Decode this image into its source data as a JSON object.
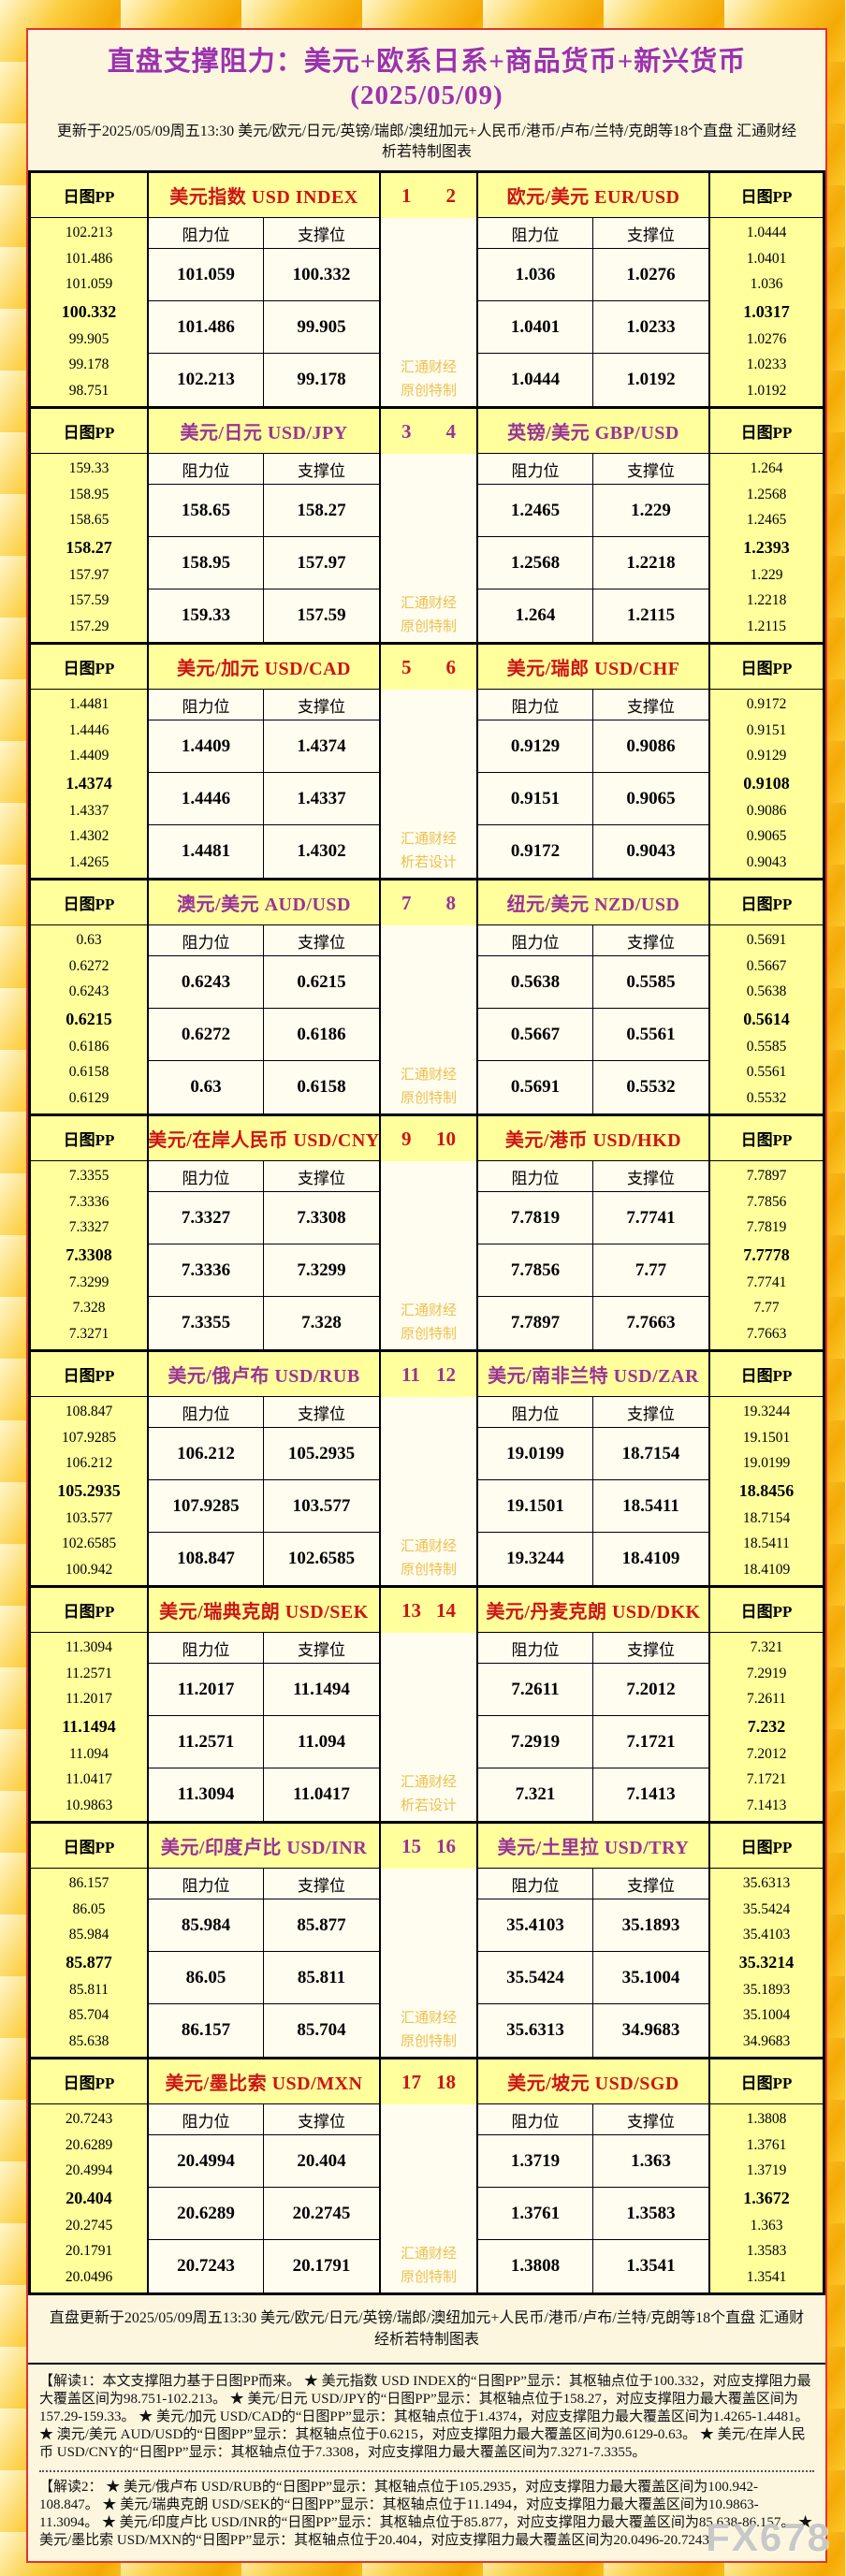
{
  "page": {
    "title": "直盘支撑阻力：美元+欧系日系+商品货币+新兴货币(2025/05/09)",
    "subtitle": "更新于2025/05/09周五13:30 美元/欧元/日元/英镑/瑞郎/澳纽加元+人民币/港币/卢布/兰特/克朗等18个直盘 汇通财经析若特制图表",
    "pp_header": "日图PP",
    "res_label": "阻力位",
    "sup_label": "支撑位",
    "summary": "直盘更新于2025/05/09周五13:30 美元/欧元/日元/英镑/瑞郎/澳纽加元+人民币/港币/卢布/兰特/克朗等18个直盘 汇通财经析若特制图表",
    "note1": "【解读1：本文支撑阻力基于日图PP而来。 ★ 美元指数 USD INDEX的“日图PP”显示：其枢轴点位于100.332，对应支撑阻力最大覆盖区间为98.751-102.213。 ★ 美元/日元 USD/JPY的“日图PP”显示：其枢轴点位于158.27，对应支撑阻力最大覆盖区间为157.29-159.33。 ★ 美元/加元 USD/CAD的“日图PP”显示：其枢轴点位于1.4374，对应支撑阻力最大覆盖区间为1.4265-1.4481。 ★ 澳元/美元 AUD/USD的“日图PP”显示：其枢轴点位于0.6215，对应支撑阻力最大覆盖区间为0.6129-0.63。 ★ 美元/在岸人民币 USD/CNY的“日图PP”显示：其枢轴点位于7.3308，对应支撑阻力最大覆盖区间为7.3271-7.3355。",
    "note2": "【解读2： ★ 美元/俄卢布 USD/RUB的“日图PP”显示：其枢轴点位于105.2935，对应支撑阻力最大覆盖区间为100.942-108.847。 ★ 美元/瑞典克朗 USD/SEK的“日图PP”显示：其枢轴点位于11.1494，对应支撑阻力最大覆盖区间为10.9863-11.3094。 ★ 美元/印度卢比 USD/INR的“日图PP”显示：其枢轴点位于85.877，对应支撑阻力最大覆盖区间为85.638-86.157。 ★ 美元/墨比索 USD/MXN的“日图PP”显示：其枢轴点位于20.404，对应支撑阻力最大覆盖区间为20.0496-20.7243。",
    "brand_mark": "FX678"
  },
  "colors": {
    "red_accent": "#CC1515",
    "purple_accent": "#993399",
    "title_purple": "#9B32B0",
    "header_bg": "#FFFF9C",
    "cell_bg": "#FFFDF0",
    "watermark_gold": "#EDC04E"
  },
  "chart_data": {
    "type": "table",
    "title": "直盘支撑阻力：美元+欧系日系+商品货币+新兴货币(2025/05/09)",
    "columns_per_pair": [
      "阻力位",
      "支撑位"
    ],
    "blocks": [
      {
        "num_left": "1",
        "num_right": "2",
        "accent": "red",
        "watermark": [
          "汇通财经",
          "原创特制"
        ],
        "left": {
          "title": "美元指数 USD INDEX",
          "pp": [
            "102.213",
            "101.486",
            "101.059",
            "100.332",
            "99.905",
            "99.178",
            "98.751"
          ],
          "rows": [
            [
              "101.059",
              "100.332"
            ],
            [
              "101.486",
              "99.905"
            ],
            [
              "102.213",
              "99.178"
            ]
          ]
        },
        "right": {
          "title": "欧元/美元 EUR/USD",
          "pp": [
            "1.0444",
            "1.0401",
            "1.036",
            "1.0317",
            "1.0276",
            "1.0233",
            "1.0192"
          ],
          "rows": [
            [
              "1.036",
              "1.0276"
            ],
            [
              "1.0401",
              "1.0233"
            ],
            [
              "1.0444",
              "1.0192"
            ]
          ]
        }
      },
      {
        "num_left": "3",
        "num_right": "4",
        "accent": "purple",
        "watermark": [
          "汇通财经",
          "原创特制"
        ],
        "left": {
          "title": "美元/日元 USD/JPY",
          "pp": [
            "159.33",
            "158.95",
            "158.65",
            "158.27",
            "157.97",
            "157.59",
            "157.29"
          ],
          "rows": [
            [
              "158.65",
              "158.27"
            ],
            [
              "158.95",
              "157.97"
            ],
            [
              "159.33",
              "157.59"
            ]
          ]
        },
        "right": {
          "title": "英镑/美元 GBP/USD",
          "pp": [
            "1.264",
            "1.2568",
            "1.2465",
            "1.2393",
            "1.229",
            "1.2218",
            "1.2115"
          ],
          "rows": [
            [
              "1.2465",
              "1.229"
            ],
            [
              "1.2568",
              "1.2218"
            ],
            [
              "1.264",
              "1.2115"
            ]
          ]
        }
      },
      {
        "num_left": "5",
        "num_right": "6",
        "accent": "red",
        "watermark": [
          "汇通财经",
          "析若设计"
        ],
        "left": {
          "title": "美元/加元 USD/CAD",
          "pp": [
            "1.4481",
            "1.4446",
            "1.4409",
            "1.4374",
            "1.4337",
            "1.4302",
            "1.4265"
          ],
          "rows": [
            [
              "1.4409",
              "1.4374"
            ],
            [
              "1.4446",
              "1.4337"
            ],
            [
              "1.4481",
              "1.4302"
            ]
          ]
        },
        "right": {
          "title": "美元/瑞郎 USD/CHF",
          "pp": [
            "0.9172",
            "0.9151",
            "0.9129",
            "0.9108",
            "0.9086",
            "0.9065",
            "0.9043"
          ],
          "rows": [
            [
              "0.9129",
              "0.9086"
            ],
            [
              "0.9151",
              "0.9065"
            ],
            [
              "0.9172",
              "0.9043"
            ]
          ]
        }
      },
      {
        "num_left": "7",
        "num_right": "8",
        "accent": "purple",
        "watermark": [
          "汇通财经",
          "原创特制"
        ],
        "left": {
          "title": "澳元/美元 AUD/USD",
          "pp": [
            "0.63",
            "0.6272",
            "0.6243",
            "0.6215",
            "0.6186",
            "0.6158",
            "0.6129"
          ],
          "rows": [
            [
              "0.6243",
              "0.6215"
            ],
            [
              "0.6272",
              "0.6186"
            ],
            [
              "0.63",
              "0.6158"
            ]
          ]
        },
        "right": {
          "title": "纽元/美元 NZD/USD",
          "pp": [
            "0.5691",
            "0.5667",
            "0.5638",
            "0.5614",
            "0.5585",
            "0.5561",
            "0.5532"
          ],
          "rows": [
            [
              "0.5638",
              "0.5585"
            ],
            [
              "0.5667",
              "0.5561"
            ],
            [
              "0.5691",
              "0.5532"
            ]
          ]
        }
      },
      {
        "num_left": "9",
        "num_right": "10",
        "accent": "red",
        "watermark": [
          "汇通财经",
          "原创特制"
        ],
        "left": {
          "title": "美元/在岸人民币 USD/CNY",
          "pp": [
            "7.3355",
            "7.3336",
            "7.3327",
            "7.3308",
            "7.3299",
            "7.328",
            "7.3271"
          ],
          "rows": [
            [
              "7.3327",
              "7.3308"
            ],
            [
              "7.3336",
              "7.3299"
            ],
            [
              "7.3355",
              "7.328"
            ]
          ]
        },
        "right": {
          "title": "美元/港币 USD/HKD",
          "pp": [
            "7.7897",
            "7.7856",
            "7.7819",
            "7.7778",
            "7.7741",
            "7.77",
            "7.7663"
          ],
          "rows": [
            [
              "7.7819",
              "7.7741"
            ],
            [
              "7.7856",
              "7.77"
            ],
            [
              "7.7897",
              "7.7663"
            ]
          ]
        }
      },
      {
        "num_left": "11",
        "num_right": "12",
        "accent": "purple",
        "watermark": [
          "汇通财经",
          "原创特制"
        ],
        "left": {
          "title": "美元/俄卢布 USD/RUB",
          "pp": [
            "108.847",
            "107.9285",
            "106.212",
            "105.2935",
            "103.577",
            "102.6585",
            "100.942"
          ],
          "rows": [
            [
              "106.212",
              "105.2935"
            ],
            [
              "107.9285",
              "103.577"
            ],
            [
              "108.847",
              "102.6585"
            ]
          ]
        },
        "right": {
          "title": "美元/南非兰特 USD/ZAR",
          "pp": [
            "19.3244",
            "19.1501",
            "19.0199",
            "18.8456",
            "18.7154",
            "18.5411",
            "18.4109"
          ],
          "rows": [
            [
              "19.0199",
              "18.7154"
            ],
            [
              "19.1501",
              "18.5411"
            ],
            [
              "19.3244",
              "18.4109"
            ]
          ]
        }
      },
      {
        "num_left": "13",
        "num_right": "14",
        "accent": "red",
        "watermark": [
          "汇通财经",
          "析若设计"
        ],
        "left": {
          "title": "美元/瑞典克朗 USD/SEK",
          "pp": [
            "11.3094",
            "11.2571",
            "11.2017",
            "11.1494",
            "11.094",
            "11.0417",
            "10.9863"
          ],
          "rows": [
            [
              "11.2017",
              "11.1494"
            ],
            [
              "11.2571",
              "11.094"
            ],
            [
              "11.3094",
              "11.0417"
            ]
          ]
        },
        "right": {
          "title": "美元/丹麦克朗 USD/DKK",
          "pp": [
            "7.321",
            "7.2919",
            "7.2611",
            "7.232",
            "7.2012",
            "7.1721",
            "7.1413"
          ],
          "rows": [
            [
              "7.2611",
              "7.2012"
            ],
            [
              "7.2919",
              "7.1721"
            ],
            [
              "7.321",
              "7.1413"
            ]
          ]
        }
      },
      {
        "num_left": "15",
        "num_right": "16",
        "accent": "purple",
        "watermark": [
          "汇通财经",
          "原创特制"
        ],
        "left": {
          "title": "美元/印度卢比 USD/INR",
          "pp": [
            "86.157",
            "86.05",
            "85.984",
            "85.877",
            "85.811",
            "85.704",
            "85.638"
          ],
          "rows": [
            [
              "85.984",
              "85.877"
            ],
            [
              "86.05",
              "85.811"
            ],
            [
              "86.157",
              "85.704"
            ]
          ]
        },
        "right": {
          "title": "美元/土里拉 USD/TRY",
          "pp": [
            "35.6313",
            "35.5424",
            "35.4103",
            "35.3214",
            "35.1893",
            "35.1004",
            "34.9683"
          ],
          "rows": [
            [
              "35.4103",
              "35.1893"
            ],
            [
              "35.5424",
              "35.1004"
            ],
            [
              "35.6313",
              "34.9683"
            ]
          ]
        }
      },
      {
        "num_left": "17",
        "num_right": "18",
        "accent": "red",
        "watermark": [
          "汇通财经",
          "原创特制"
        ],
        "left": {
          "title": "美元/墨比索 USD/MXN",
          "pp": [
            "20.7243",
            "20.6289",
            "20.4994",
            "20.404",
            "20.2745",
            "20.1791",
            "20.0496"
          ],
          "rows": [
            [
              "20.4994",
              "20.404"
            ],
            [
              "20.6289",
              "20.2745"
            ],
            [
              "20.7243",
              "20.1791"
            ]
          ]
        },
        "right": {
          "title": "美元/坡元 USD/SGD",
          "pp": [
            "1.3808",
            "1.3761",
            "1.3719",
            "1.3672",
            "1.363",
            "1.3583",
            "1.3541"
          ],
          "rows": [
            [
              "1.3719",
              "1.363"
            ],
            [
              "1.3761",
              "1.3583"
            ],
            [
              "1.3808",
              "1.3541"
            ]
          ]
        }
      }
    ]
  }
}
